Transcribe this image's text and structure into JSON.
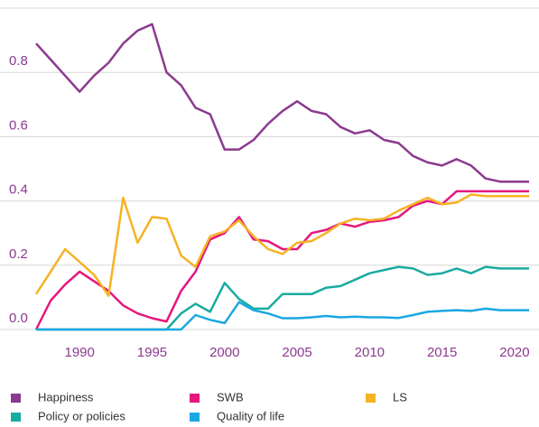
{
  "chart_data": {
    "type": "line",
    "x": [
      1987,
      1988,
      1989,
      1990,
      1991,
      1992,
      1993,
      1994,
      1995,
      1996,
      1997,
      1998,
      1999,
      2000,
      2001,
      2002,
      2003,
      2004,
      2005,
      2006,
      2007,
      2008,
      2009,
      2010,
      2011,
      2012,
      2013,
      2014,
      2015,
      2016,
      2017,
      2018,
      2019,
      2020,
      2021
    ],
    "xlim": [
      1987,
      2021
    ],
    "xticks": [
      1990,
      1995,
      2000,
      2005,
      2010,
      2015,
      2020
    ],
    "ylim": [
      0,
      1
    ],
    "yticks": [
      {
        "value": 0,
        "label": "0.0"
      },
      0.2,
      0.4,
      0.6,
      0.8
    ],
    "grid": true,
    "legend": "bottom",
    "series": [
      {
        "name": "Happiness",
        "color": "#8b3a8f",
        "values": [
          0.89,
          0.84,
          0.79,
          0.74,
          0.79,
          0.83,
          0.89,
          0.93,
          0.95,
          0.8,
          0.76,
          0.69,
          0.67,
          0.56,
          0.56,
          0.59,
          0.64,
          0.68,
          0.71,
          0.68,
          0.67,
          0.63,
          0.61,
          0.62,
          0.59,
          0.58,
          0.54,
          0.52,
          0.51,
          0.53,
          0.51,
          0.47,
          0.46,
          0.46,
          0.46
        ]
      },
      {
        "name": "SWB",
        "color": "#e5177e",
        "values": [
          0,
          0.09,
          0.14,
          0.18,
          0.15,
          0.12,
          0.075,
          0.05,
          0.035,
          0.025,
          0.12,
          0.18,
          0.28,
          0.3,
          0.35,
          0.28,
          0.275,
          0.25,
          0.25,
          0.3,
          0.31,
          0.33,
          0.32,
          0.335,
          0.34,
          0.35,
          0.385,
          0.4,
          0.39,
          0.43,
          0.43,
          0.43,
          0.43,
          0.43,
          0.43
        ]
      },
      {
        "name": "LS",
        "color": "#f5b324",
        "values": [
          0.11,
          0.18,
          0.25,
          0.21,
          0.17,
          0.105,
          0.41,
          0.27,
          0.35,
          0.345,
          0.23,
          0.195,
          0.29,
          0.305,
          0.34,
          0.29,
          0.25,
          0.235,
          0.27,
          0.275,
          0.3,
          0.33,
          0.345,
          0.34,
          0.345,
          0.37,
          0.39,
          0.41,
          0.39,
          0.395,
          0.42,
          0.415,
          0.415,
          0.415,
          0.415
        ]
      },
      {
        "name": "Policy or policies",
        "color": "#1aaba0",
        "values": [
          0,
          0,
          0,
          0,
          0,
          0,
          0,
          0,
          0,
          0,
          0.05,
          0.08,
          0.055,
          0.145,
          0.095,
          0.065,
          0.065,
          0.11,
          0.11,
          0.11,
          0.13,
          0.135,
          0.155,
          0.175,
          0.185,
          0.195,
          0.19,
          0.17,
          0.175,
          0.19,
          0.175,
          0.195,
          0.19,
          0.19,
          0.19
        ]
      },
      {
        "name": "Quality of life",
        "color": "#1ba8e0",
        "values": [
          0,
          0,
          0,
          0,
          0,
          0,
          0,
          0,
          0,
          0,
          0,
          0.045,
          0.03,
          0.02,
          0.085,
          0.06,
          0.05,
          0.035,
          0.035,
          0.038,
          0.042,
          0.038,
          0.04,
          0.038,
          0.038,
          0.036,
          0.045,
          0.055,
          0.058,
          0.06,
          0.058,
          0.065,
          0.06,
          0.06,
          0.06
        ]
      }
    ]
  }
}
